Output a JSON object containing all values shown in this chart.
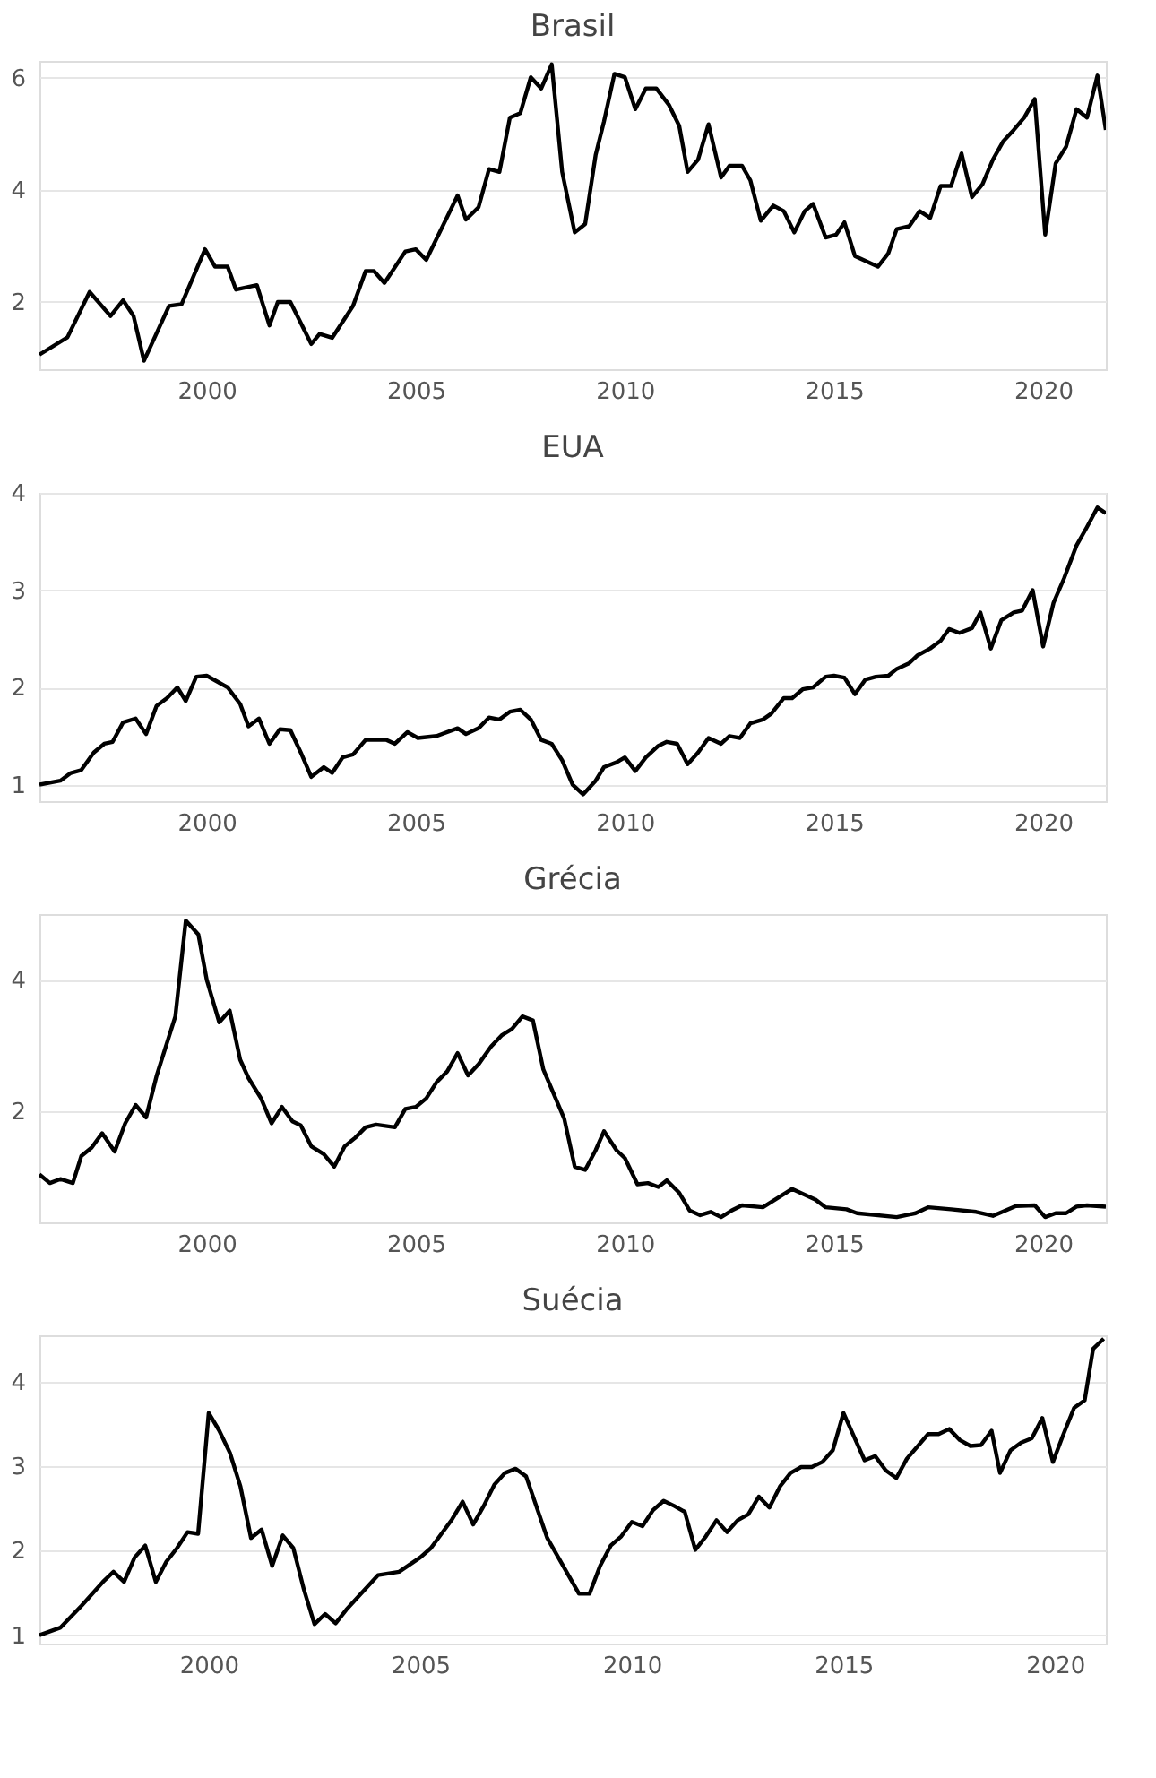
{
  "chart_data": [
    {
      "type": "line",
      "title": "Brasil",
      "color": "#000000",
      "grid": "y",
      "xlim": [
        1996,
        2021.5
      ],
      "xticks": [
        2000,
        2005,
        2010,
        2015,
        2020
      ],
      "ylim": [
        0.8,
        6.3
      ],
      "yticks": [
        2,
        4,
        6
      ],
      "x": [
        1996.0,
        1996.67,
        1997.2,
        1997.7,
        1998.0,
        1998.25,
        1998.5,
        1999.1,
        1999.4,
        1999.96,
        2000.2,
        2000.5,
        2000.7,
        2001.2,
        2001.5,
        2001.7,
        2002.0,
        2002.5,
        2002.7,
        2003.0,
        2003.5,
        2003.8,
        2004.0,
        2004.25,
        2004.75,
        2005.0,
        2005.25,
        2006.0,
        2006.2,
        2006.5,
        2006.75,
        2007.0,
        2007.25,
        2007.5,
        2007.75,
        2008.0,
        2008.25,
        2008.5,
        2008.8,
        2009.05,
        2009.3,
        2009.5,
        2009.75,
        2010.0,
        2010.25,
        2010.5,
        2010.75,
        2011.05,
        2011.3,
        2011.5,
        2011.75,
        2012.0,
        2012.3,
        2012.5,
        2012.8,
        2013.0,
        2013.25,
        2013.55,
        2013.8,
        2014.05,
        2014.3,
        2014.5,
        2014.8,
        2015.05,
        2015.25,
        2015.5,
        2016.05,
        2016.3,
        2016.5,
        2016.8,
        2017.05,
        2017.3,
        2017.55,
        2017.8,
        2018.05,
        2018.3,
        2018.55,
        2018.8,
        2019.05,
        2019.3,
        2019.55,
        2019.8,
        2020.05,
        2020.3,
        2020.55,
        2020.8,
        2021.05,
        2021.3,
        2021.5
      ],
      "values": [
        1.06,
        1.37,
        2.18,
        1.75,
        2.03,
        1.75,
        0.95,
        1.93,
        1.96,
        2.94,
        2.63,
        2.63,
        2.22,
        2.3,
        1.58,
        2.0,
        2.0,
        1.25,
        1.43,
        1.36,
        1.93,
        2.55,
        2.55,
        2.34,
        2.9,
        2.94,
        2.75,
        3.9,
        3.47,
        3.69,
        4.37,
        4.32,
        5.29,
        5.37,
        6.01,
        5.81,
        6.24,
        4.32,
        3.24,
        3.39,
        4.62,
        5.22,
        6.07,
        6.01,
        5.44,
        5.81,
        5.81,
        5.52,
        5.14,
        4.32,
        4.54,
        5.17,
        4.22,
        4.43,
        4.43,
        4.17,
        3.45,
        3.72,
        3.62,
        3.24,
        3.62,
        3.75,
        3.15,
        3.2,
        3.42,
        2.82,
        2.63,
        2.87,
        3.3,
        3.35,
        3.62,
        3.5,
        4.07,
        4.07,
        4.65,
        3.87,
        4.1,
        4.54,
        4.87,
        5.07,
        5.29,
        5.62,
        3.2,
        4.47,
        4.77,
        5.44,
        5.29,
        6.04,
        5.07
      ]
    },
    {
      "type": "line",
      "title": "EUA",
      "color": "#000000",
      "grid": "y",
      "xlim": [
        1996,
        2021.5
      ],
      "xticks": [
        2000,
        2005,
        2010,
        2015,
        2020
      ],
      "ylim": [
        0.83,
        4.0
      ],
      "yticks": [
        1,
        2,
        3,
        4
      ],
      "x": [
        1996.0,
        1996.5,
        1996.75,
        1997.0,
        1997.3,
        1997.55,
        1997.75,
        1998.0,
        1998.3,
        1998.55,
        1998.8,
        1999.05,
        1999.3,
        1999.5,
        1999.75,
        2000.0,
        2000.25,
        2000.5,
        2000.8,
        2001.0,
        2001.25,
        2001.5,
        2001.75,
        2002.0,
        2002.25,
        2002.5,
        2002.8,
        2003.0,
        2003.25,
        2003.5,
        2003.8,
        2004.05,
        2004.3,
        2004.5,
        2004.8,
        2005.05,
        2005.5,
        2006.0,
        2006.2,
        2006.5,
        2006.75,
        2007.0,
        2007.25,
        2007.5,
        2007.75,
        2008.0,
        2008.25,
        2008.5,
        2008.75,
        2009.0,
        2009.3,
        2009.5,
        2009.8,
        2010.0,
        2010.25,
        2010.5,
        2010.8,
        2011.0,
        2011.25,
        2011.5,
        2011.75,
        2012.0,
        2012.3,
        2012.5,
        2012.75,
        2013.0,
        2013.3,
        2013.5,
        2013.8,
        2014.0,
        2014.25,
        2014.5,
        2014.8,
        2015.0,
        2015.25,
        2015.5,
        2015.75,
        2016.0,
        2016.3,
        2016.5,
        2016.8,
        2017.0,
        2017.3,
        2017.55,
        2017.75,
        2018.0,
        2018.3,
        2018.5,
        2018.75,
        2019.0,
        2019.3,
        2019.5,
        2019.75,
        2020.0,
        2020.25,
        2020.5,
        2020.8,
        2021.05,
        2021.3,
        2021.5
      ],
      "values": [
        1.0,
        1.04,
        1.12,
        1.15,
        1.33,
        1.42,
        1.44,
        1.64,
        1.68,
        1.52,
        1.81,
        1.89,
        2.0,
        1.86,
        2.11,
        2.12,
        2.06,
        2.0,
        1.83,
        1.6,
        1.68,
        1.42,
        1.57,
        1.56,
        1.33,
        1.08,
        1.18,
        1.12,
        1.28,
        1.31,
        1.46,
        1.46,
        1.46,
        1.42,
        1.54,
        1.48,
        1.5,
        1.58,
        1.52,
        1.58,
        1.69,
        1.67,
        1.75,
        1.77,
        1.67,
        1.46,
        1.42,
        1.25,
        1.0,
        0.9,
        1.04,
        1.18,
        1.23,
        1.28,
        1.14,
        1.28,
        1.4,
        1.44,
        1.42,
        1.21,
        1.33,
        1.48,
        1.42,
        1.5,
        1.48,
        1.63,
        1.67,
        1.73,
        1.89,
        1.89,
        1.98,
        2.0,
        2.11,
        2.12,
        2.1,
        1.93,
        2.08,
        2.11,
        2.12,
        2.19,
        2.25,
        2.33,
        2.4,
        2.48,
        2.6,
        2.56,
        2.61,
        2.77,
        2.4,
        2.69,
        2.77,
        2.79,
        3.0,
        2.42,
        2.87,
        3.12,
        3.46,
        3.65,
        3.85,
        3.79
      ]
    },
    {
      "type": "line",
      "title": "Grécia",
      "color": "#000000",
      "grid": "y",
      "xlim": [
        1996,
        2021.5
      ],
      "xticks": [
        2000,
        2005,
        2010,
        2015,
        2020
      ],
      "ylim": [
        0.3,
        5.0
      ],
      "yticks": [
        2,
        4
      ],
      "x": [
        1996.0,
        1996.25,
        1996.5,
        1996.8,
        1997.0,
        1997.25,
        1997.5,
        1997.8,
        1998.05,
        1998.3,
        1998.55,
        1998.8,
        1999.25,
        1999.5,
        1999.8,
        2000.0,
        2000.3,
        2000.55,
        2000.8,
        2001.0,
        2001.3,
        2001.55,
        2001.8,
        2002.05,
        2002.25,
        2002.5,
        2002.8,
        2003.05,
        2003.3,
        2003.55,
        2003.8,
        2004.05,
        2004.5,
        2004.75,
        2005.0,
        2005.25,
        2005.5,
        2005.75,
        2006.0,
        2006.25,
        2006.5,
        2006.8,
        2007.05,
        2007.3,
        2007.55,
        2007.8,
        2008.05,
        2008.55,
        2008.8,
        2009.05,
        2009.3,
        2009.5,
        2009.8,
        2010.0,
        2010.3,
        2010.55,
        2010.8,
        2011.0,
        2011.3,
        2011.55,
        2011.8,
        2012.05,
        2012.3,
        2012.55,
        2012.8,
        2013.3,
        2014.0,
        2014.55,
        2014.8,
        2015.3,
        2015.55,
        2016.5,
        2016.95,
        2017.25,
        2017.8,
        2018.4,
        2018.8,
        2019.35,
        2019.8,
        2020.05,
        2020.3,
        2020.55,
        2020.8,
        2021.05,
        2021.5
      ],
      "values": [
        1.03,
        0.9,
        0.96,
        0.9,
        1.31,
        1.44,
        1.66,
        1.38,
        1.81,
        2.09,
        1.9,
        2.53,
        3.44,
        4.9,
        4.69,
        4.0,
        3.35,
        3.53,
        2.78,
        2.5,
        2.19,
        1.81,
        2.06,
        1.84,
        1.78,
        1.46,
        1.34,
        1.15,
        1.46,
        1.59,
        1.75,
        1.79,
        1.75,
        2.03,
        2.06,
        2.19,
        2.44,
        2.6,
        2.88,
        2.54,
        2.71,
        2.98,
        3.15,
        3.25,
        3.44,
        3.38,
        2.63,
        1.88,
        1.15,
        1.1,
        1.4,
        1.69,
        1.4,
        1.28,
        0.88,
        0.9,
        0.84,
        0.94,
        0.75,
        0.48,
        0.41,
        0.46,
        0.38,
        0.48,
        0.56,
        0.53,
        0.81,
        0.65,
        0.53,
        0.5,
        0.44,
        0.38,
        0.44,
        0.53,
        0.5,
        0.46,
        0.4,
        0.55,
        0.56,
        0.38,
        0.44,
        0.44,
        0.54,
        0.56,
        0.54
      ]
    },
    {
      "type": "line",
      "title": "Suécia",
      "color": "#000000",
      "grid": "y",
      "xlim": [
        1996,
        2021.2
      ],
      "xticks": [
        2000,
        2005,
        2010,
        2015,
        2020
      ],
      "ylim": [
        0.9,
        4.55
      ],
      "yticks": [
        1,
        2,
        3,
        4
      ],
      "x": [
        1996.0,
        1996.5,
        1997.0,
        1997.5,
        1997.75,
        1998.0,
        1998.25,
        1998.5,
        1998.75,
        1999.0,
        1999.25,
        1999.5,
        1999.75,
        2000.0,
        2000.25,
        2000.5,
        2000.75,
        2001.0,
        2001.25,
        2001.5,
        2001.75,
        2002.0,
        2002.25,
        2002.5,
        2002.75,
        2003.0,
        2003.25,
        2004.0,
        2004.5,
        2005.0,
        2005.25,
        2005.75,
        2006.0,
        2006.25,
        2006.5,
        2006.75,
        2007.0,
        2007.25,
        2007.5,
        2008.0,
        2008.75,
        2009.0,
        2009.25,
        2009.5,
        2009.75,
        2010.0,
        2010.25,
        2010.5,
        2010.75,
        2011.0,
        2011.25,
        2011.5,
        2011.75,
        2012.0,
        2012.25,
        2012.5,
        2012.75,
        2013.0,
        2013.25,
        2013.5,
        2013.75,
        2014.0,
        2014.25,
        2014.5,
        2014.75,
        2015.0,
        2015.25,
        2015.5,
        2015.75,
        2016.0,
        2016.25,
        2016.5,
        2017.0,
        2017.25,
        2017.5,
        2017.75,
        2018.0,
        2018.25,
        2018.5,
        2018.7,
        2018.95,
        2019.2,
        2019.45,
        2019.7,
        2019.95,
        2020.2,
        2020.45,
        2020.7,
        2020.9,
        2021.15
      ],
      "values": [
        1.0,
        1.09,
        1.35,
        1.63,
        1.75,
        1.63,
        1.92,
        2.06,
        1.63,
        1.87,
        2.03,
        2.22,
        2.2,
        3.63,
        3.42,
        3.16,
        2.76,
        2.15,
        2.25,
        1.82,
        2.18,
        2.03,
        1.54,
        1.13,
        1.25,
        1.14,
        1.3,
        1.71,
        1.75,
        1.92,
        2.03,
        2.37,
        2.58,
        2.31,
        2.53,
        2.78,
        2.92,
        2.97,
        2.88,
        2.15,
        1.49,
        1.49,
        1.82,
        2.06,
        2.17,
        2.34,
        2.29,
        2.48,
        2.59,
        2.53,
        2.46,
        2.01,
        2.17,
        2.36,
        2.22,
        2.36,
        2.43,
        2.64,
        2.51,
        2.76,
        2.92,
        2.99,
        2.99,
        3.05,
        3.19,
        3.63,
        3.35,
        3.07,
        3.12,
        2.95,
        2.86,
        3.09,
        3.38,
        3.38,
        3.44,
        3.31,
        3.24,
        3.25,
        3.42,
        2.92,
        3.19,
        3.28,
        3.33,
        3.57,
        3.05,
        3.38,
        3.69,
        3.78,
        4.39,
        4.51
      ]
    }
  ]
}
